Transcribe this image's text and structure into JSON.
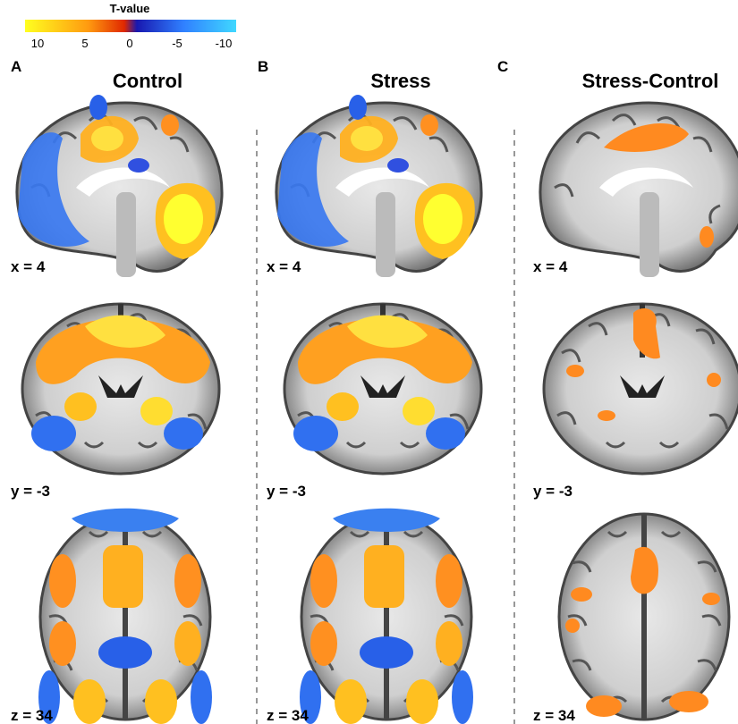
{
  "colorbar": {
    "title": "T-value",
    "ticks": [
      "10",
      "5",
      "0",
      "-5",
      "-10"
    ]
  },
  "panels": [
    {
      "letter": "A",
      "title": "Control",
      "slices": [
        "x = 4",
        "y = -3",
        "z = 34"
      ]
    },
    {
      "letter": "B",
      "title": "Stress",
      "slices": [
        "x = 4",
        "y = -3",
        "z = 34"
      ]
    },
    {
      "letter": "C",
      "title": "Stress-Control",
      "slices": [
        "x = 4",
        "y = -3",
        "z = 34"
      ]
    }
  ]
}
